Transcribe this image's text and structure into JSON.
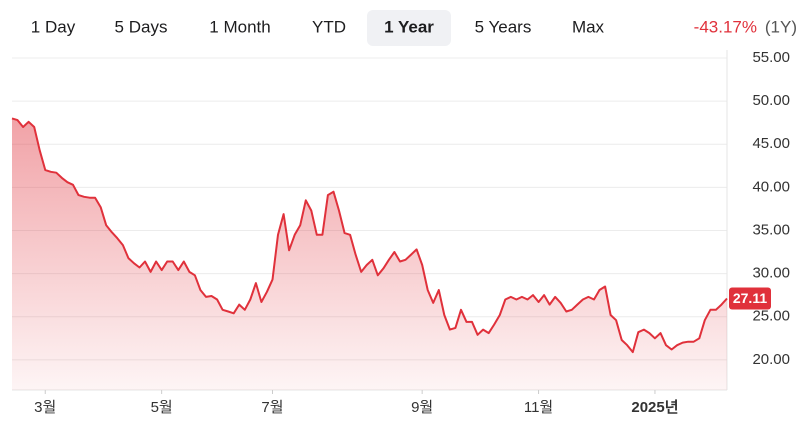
{
  "tabs": [
    "1 Day",
    "5 Days",
    "1 Month",
    "YTD",
    "1 Year",
    "5 Years",
    "Max"
  ],
  "selected_tab": 4,
  "change": "-43.17%",
  "change_period": "(1Y)",
  "chart_data": {
    "type": "line",
    "series": [
      {
        "color": "#e0313b",
        "values": [
          48.0,
          47.8,
          47.0,
          47.6,
          47.0,
          44.3,
          42.0,
          41.8,
          41.7,
          41.1,
          40.6,
          40.3,
          39.1,
          38.9,
          38.8,
          38.8,
          37.7,
          35.6,
          34.8,
          34.1,
          33.3,
          31.8,
          31.2,
          30.7,
          31.4,
          30.2,
          31.4,
          30.4,
          31.4,
          31.4,
          30.4,
          31.4,
          30.2,
          29.8,
          28.1,
          27.3,
          27.4,
          27.0,
          25.8,
          25.6,
          25.4,
          26.4,
          25.8,
          27.0,
          28.9,
          26.7,
          27.9,
          29.3,
          34.5,
          36.9,
          32.7,
          34.5,
          35.6,
          38.5,
          37.3,
          34.5,
          34.5,
          39.1,
          39.5,
          37.3,
          34.7,
          34.5,
          32.2,
          30.2,
          31.0,
          31.6,
          29.8,
          30.6,
          31.6,
          32.5,
          31.4,
          31.6,
          32.2,
          32.8,
          31.0,
          28.1,
          26.6,
          28.1,
          25.2,
          23.5,
          23.7,
          25.8,
          24.4,
          24.4,
          22.9,
          23.5,
          23.1,
          24.1,
          25.2,
          27.0,
          27.3,
          27.0,
          27.3,
          27.0,
          27.5,
          26.7,
          27.5,
          26.4,
          27.3,
          26.6,
          25.6,
          25.8,
          26.4,
          27.0,
          27.3,
          27.0,
          28.1,
          28.5,
          25.2,
          24.6,
          22.3,
          21.7,
          20.9,
          23.2,
          23.5,
          23.1,
          22.5,
          23.1,
          21.7,
          21.2,
          21.7,
          22.0,
          22.1,
          22.1,
          22.5,
          24.6,
          25.8,
          25.8,
          26.4,
          27.11
        ],
        "value_labels": [
          null,
          null,
          null,
          null,
          null,
          null,
          null,
          null,
          null,
          null,
          null,
          null,
          null,
          null,
          null,
          null,
          null,
          null,
          null,
          null,
          null,
          null,
          null,
          null,
          null,
          null,
          null,
          null,
          null,
          null,
          null,
          null,
          null,
          null,
          null,
          null,
          null,
          null,
          null,
          null,
          null,
          null,
          null,
          null,
          null,
          null,
          null,
          null,
          null,
          null,
          null,
          null,
          null,
          null,
          null,
          null,
          null,
          null,
          null,
          null,
          null,
          null,
          null,
          null,
          null,
          null,
          null,
          null,
          null,
          null,
          null,
          null,
          null,
          null,
          null,
          null,
          null,
          null,
          null,
          null,
          null,
          null,
          null,
          null,
          null,
          null,
          null,
          null,
          null,
          null,
          null,
          null,
          null,
          null,
          null,
          null,
          null,
          null,
          null,
          null,
          null,
          null,
          null,
          null,
          null,
          null,
          null,
          null,
          null,
          null,
          null,
          null,
          null,
          null,
          null,
          null,
          null,
          null,
          null,
          null,
          null,
          null,
          null,
          null,
          null,
          null,
          null,
          null,
          null,
          "27.11"
        ]
      }
    ],
    "xlim": [
      0,
      129
    ],
    "xticks": [
      {
        "value": 6,
        "label": "3월"
      },
      {
        "value": 27,
        "label": "5월"
      },
      {
        "value": 47,
        "label": "7월"
      },
      {
        "value": 74,
        "label": "9월"
      },
      {
        "value": 95,
        "label": "11월"
      },
      {
        "value": 116,
        "label": "2025년"
      }
    ],
    "ylim": [
      16.5,
      55
    ],
    "yticks": [
      {
        "value": 20,
        "label": "20.00"
      },
      {
        "value": 25,
        "label": "25.00"
      },
      {
        "value": 30,
        "label": "30.00"
      },
      {
        "value": 35,
        "label": "35.00"
      },
      {
        "value": 40,
        "label": "40.00"
      },
      {
        "value": 45,
        "label": "45.00"
      },
      {
        "value": 50,
        "label": "50.00"
      },
      {
        "value": 55,
        "label": "55.00"
      }
    ],
    "grid": true
  }
}
